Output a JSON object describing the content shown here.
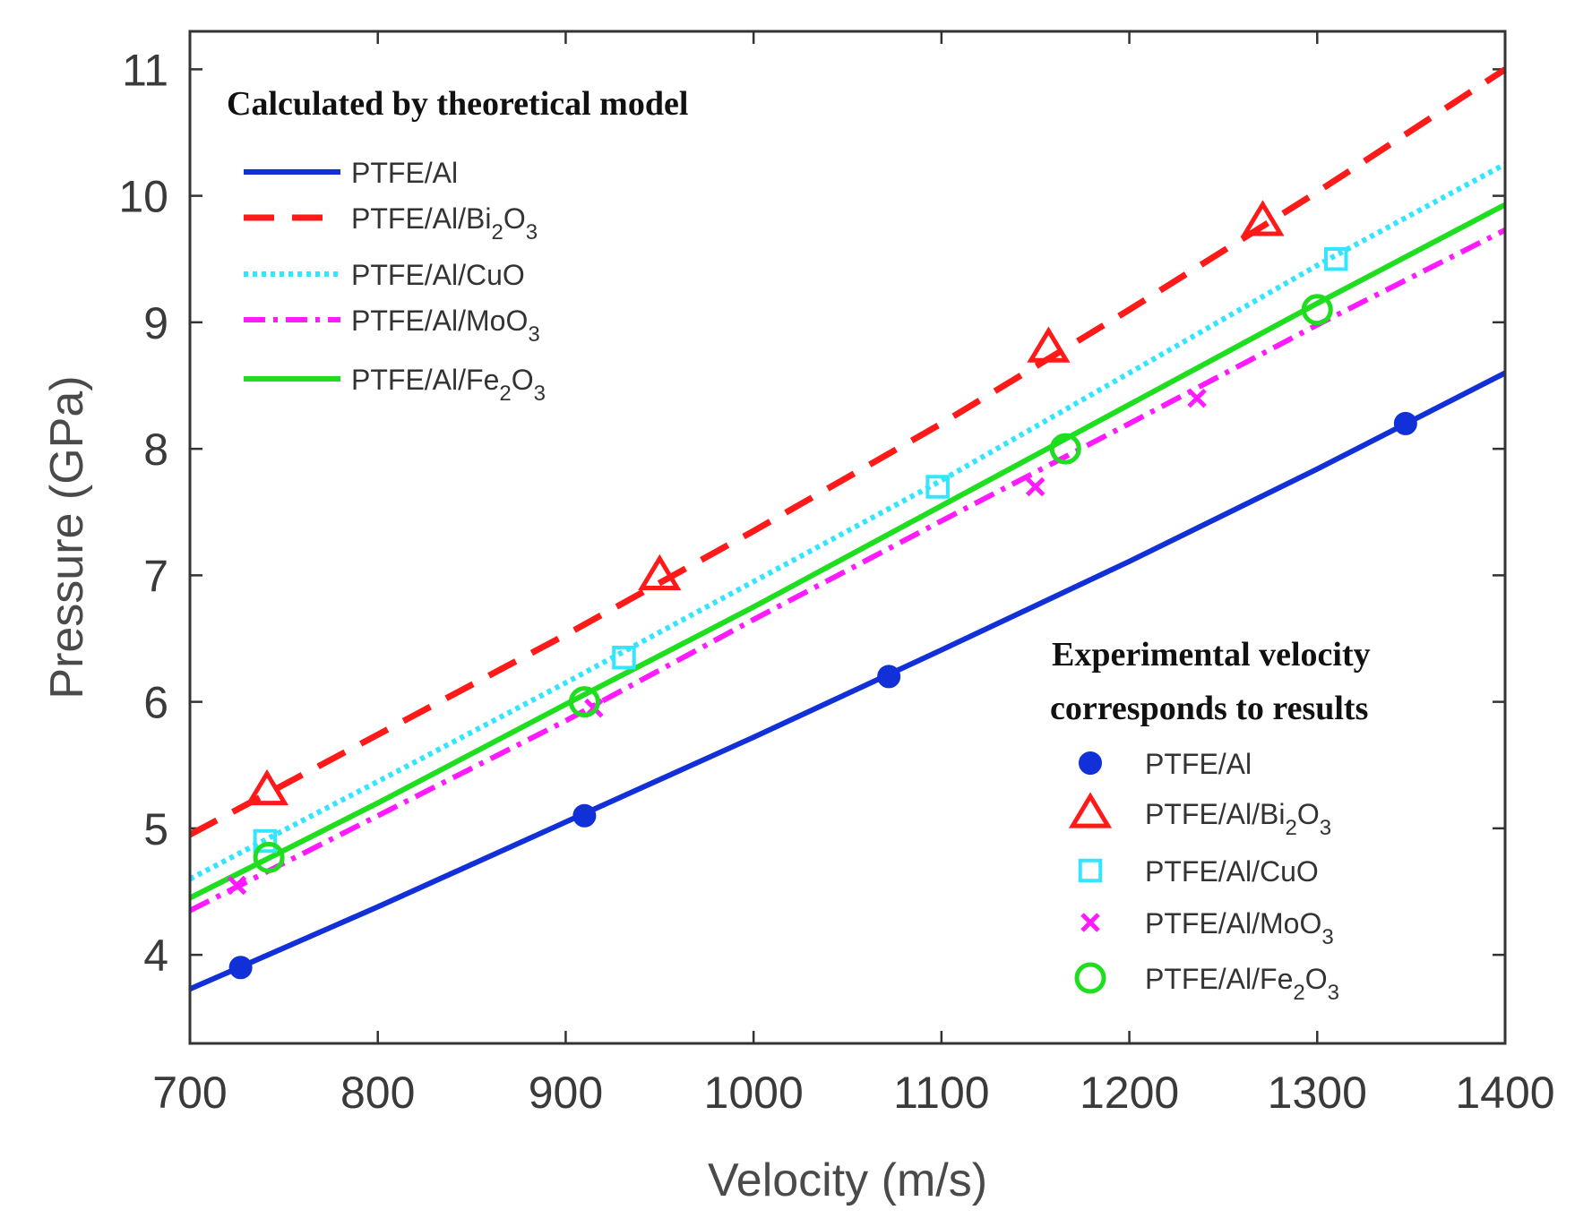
{
  "chart_data": {
    "type": "line",
    "xlabel": "Velocity (m/s)",
    "ylabel": "Pressure (GPa)",
    "xlim": [
      700,
      1400
    ],
    "ylim": [
      3.3,
      11.3
    ],
    "xticks": [
      "700",
      "800",
      "900",
      "1000",
      "1100",
      "1200",
      "1300",
      "1400"
    ],
    "yticks": [
      "4",
      "5",
      "6",
      "7",
      "8",
      "9",
      "10",
      "11"
    ],
    "legend_model": {
      "title": "Calculated by theoretical model",
      "placement": "top-left"
    },
    "legend_experimental": {
      "title_line1": "Experimental velocity",
      "title_line2": "corresponds to results",
      "placement": "bottom-right"
    },
    "series": [
      {
        "name": "PTFE/Al",
        "label_main": "PTFE/Al",
        "label_sub1": "",
        "label_mid": "",
        "label_sub2": "",
        "color": "#1230d8",
        "line_style": "solid",
        "marker": "dot",
        "line_x": [
          700,
          800,
          900,
          1000,
          1100,
          1200,
          1300,
          1400
        ],
        "line_y": [
          3.73,
          4.38,
          5.05,
          5.72,
          6.41,
          7.11,
          7.84,
          8.6
        ],
        "points_x": [
          727,
          910,
          1072,
          1347
        ],
        "points_y": [
          3.9,
          5.1,
          6.2,
          8.2
        ]
      },
      {
        "name": "PTFE/Al/Bi2O3",
        "label_main": "PTFE/Al/Bi",
        "label_sub1": "2",
        "label_mid": "O",
        "label_sub2": "3",
        "color": "#ff1a1a",
        "line_style": "dashed",
        "marker": "triangle",
        "line_x": [
          700,
          800,
          900,
          1000,
          1100,
          1200,
          1300,
          1400
        ],
        "line_y": [
          4.95,
          5.74,
          6.53,
          7.35,
          8.2,
          9.1,
          10.03,
          11.0
        ],
        "points_x": [
          741,
          950,
          1157,
          1271
        ],
        "points_y": [
          5.3,
          7.0,
          8.8,
          9.8
        ]
      },
      {
        "name": "PTFE/Al/CuO",
        "label_main": "PTFE/Al/CuO",
        "label_sub1": "",
        "label_mid": "",
        "label_sub2": "",
        "color": "#33e5ff",
        "line_style": "dotted",
        "marker": "square",
        "line_x": [
          700,
          800,
          900,
          1000,
          1100,
          1200,
          1300,
          1400
        ],
        "line_y": [
          4.6,
          5.37,
          6.15,
          6.95,
          7.75,
          8.6,
          9.45,
          10.25
        ],
        "points_x": [
          740,
          931,
          1098,
          1310
        ],
        "points_y": [
          4.9,
          6.35,
          7.7,
          9.5
        ]
      },
      {
        "name": "PTFE/Al/MoO3",
        "label_main": "PTFE/Al/MoO",
        "label_sub1": "3",
        "label_mid": "",
        "label_sub2": "",
        "color": "#ff1aff",
        "line_style": "dashdot",
        "marker": "cross",
        "line_x": [
          700,
          800,
          900,
          1000,
          1100,
          1200,
          1300,
          1400
        ],
        "line_y": [
          4.35,
          5.1,
          5.85,
          6.65,
          7.43,
          8.2,
          8.98,
          9.73
        ],
        "points_x": [
          725,
          915,
          1150,
          1236
        ],
        "points_y": [
          4.55,
          5.95,
          7.7,
          8.4
        ]
      },
      {
        "name": "PTFE/Al/Fe2O3",
        "label_main": "PTFE/Al/Fe",
        "label_sub1": "2",
        "label_mid": "O",
        "label_sub2": "3",
        "color": "#1fdd1f",
        "line_style": "solid",
        "marker": "circle",
        "line_x": [
          700,
          800,
          900,
          1000,
          1100,
          1200,
          1300,
          1400
        ],
        "line_y": [
          4.45,
          5.2,
          5.98,
          6.75,
          7.55,
          8.35,
          9.15,
          9.93
        ],
        "points_x": [
          742,
          910,
          1166,
          1300
        ],
        "points_y": [
          4.77,
          6.0,
          8.0,
          9.1
        ]
      }
    ]
  }
}
